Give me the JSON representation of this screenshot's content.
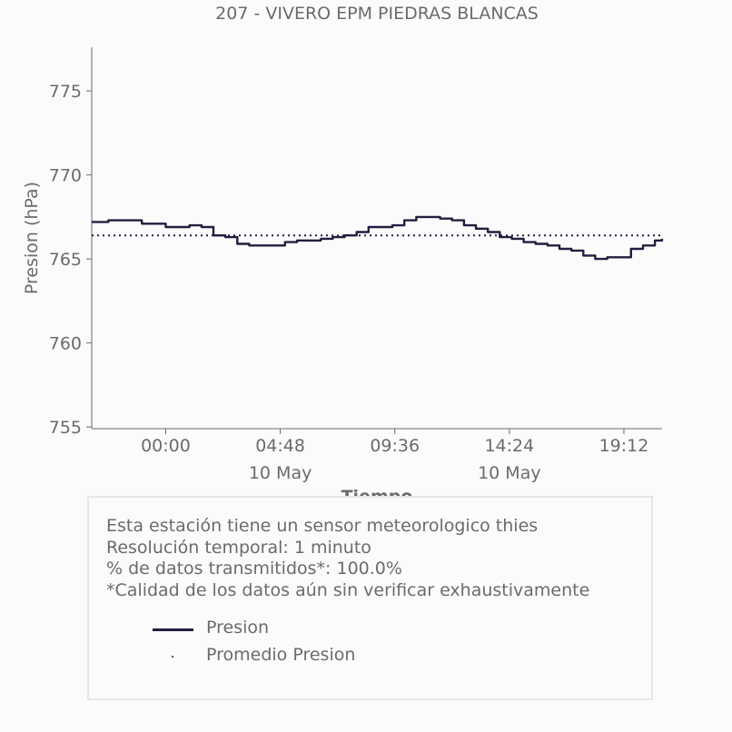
{
  "chart_data": {
    "type": "line",
    "title": "207 - VIVERO EPM PIEDRAS BLANCAS",
    "xlabel": "Tiempo",
    "ylabel": "Presion (hPa)",
    "ylim": [
      754.9,
      777.6
    ],
    "xlim": [
      "2025-05-09T20:54",
      "2025-05-10T20:48"
    ],
    "y_ticks": [
      755,
      760,
      765,
      770,
      775
    ],
    "x_ticks": [
      {
        "at": "2025-05-10T00:00",
        "label": "00:00",
        "sublabel": ""
      },
      {
        "at": "2025-05-10T04:48",
        "label": "04:48",
        "sublabel": "10 May"
      },
      {
        "at": "2025-05-10T09:36",
        "label": "09:36",
        "sublabel": ""
      },
      {
        "at": "2025-05-10T14:24",
        "label": "14:24",
        "sublabel": "10 May"
      },
      {
        "at": "2025-05-10T19:12",
        "label": "19:12",
        "sublabel": ""
      }
    ],
    "grid": false,
    "series": [
      {
        "name": "Presion",
        "color": "#1f1f3f",
        "style": "solid",
        "x": [
          "2025-05-09T20:54",
          "2025-05-09T21:36",
          "2025-05-09T22:00",
          "2025-05-09T22:30",
          "2025-05-09T23:00",
          "2025-05-09T23:30",
          "2025-05-10T00:00",
          "2025-05-10T00:30",
          "2025-05-10T01:00",
          "2025-05-10T01:30",
          "2025-05-10T02:00",
          "2025-05-10T02:30",
          "2025-05-10T03:00",
          "2025-05-10T03:30",
          "2025-05-10T04:00",
          "2025-05-10T04:30",
          "2025-05-10T05:00",
          "2025-05-10T05:30",
          "2025-05-10T06:00",
          "2025-05-10T06:30",
          "2025-05-10T07:00",
          "2025-05-10T07:30",
          "2025-05-10T08:00",
          "2025-05-10T08:30",
          "2025-05-10T09:00",
          "2025-05-10T09:30",
          "2025-05-10T10:00",
          "2025-05-10T10:30",
          "2025-05-10T11:00",
          "2025-05-10T11:30",
          "2025-05-10T12:00",
          "2025-05-10T12:30",
          "2025-05-10T13:00",
          "2025-05-10T13:30",
          "2025-05-10T14:00",
          "2025-05-10T14:30",
          "2025-05-10T15:00",
          "2025-05-10T15:30",
          "2025-05-10T16:00",
          "2025-05-10T16:30",
          "2025-05-10T17:00",
          "2025-05-10T17:30",
          "2025-05-10T18:00",
          "2025-05-10T18:30",
          "2025-05-10T19:00",
          "2025-05-10T19:30",
          "2025-05-10T20:00",
          "2025-05-10T20:30",
          "2025-05-10T20:48"
        ],
        "y": [
          767.2,
          767.3,
          767.3,
          767.3,
          767.1,
          767.1,
          766.9,
          766.9,
          767.0,
          766.9,
          766.4,
          766.3,
          765.9,
          765.8,
          765.8,
          765.8,
          766.0,
          766.1,
          766.1,
          766.2,
          766.3,
          766.4,
          766.6,
          766.9,
          766.9,
          767.0,
          767.3,
          767.5,
          767.5,
          767.4,
          767.3,
          767.0,
          766.8,
          766.6,
          766.3,
          766.2,
          766.0,
          765.9,
          765.8,
          765.6,
          765.5,
          765.2,
          765.0,
          765.1,
          765.1,
          765.6,
          765.8,
          766.1,
          766.2
        ]
      },
      {
        "name": "Promedio Presion",
        "color": "#1f1f3f",
        "style": "dotted",
        "constant": 766.4
      }
    ]
  },
  "info": {
    "line1": "Esta estación tiene un sensor meteorologico thies",
    "line2": "Resolución temporal: 1 minuto",
    "line3": "% de datos transmitidos*: 100.0%",
    "line4": "*Calidad de los datos aún sin verificar exhaustivamente"
  },
  "legend": {
    "series1": "Presion",
    "series2": "Promedio Presion"
  }
}
